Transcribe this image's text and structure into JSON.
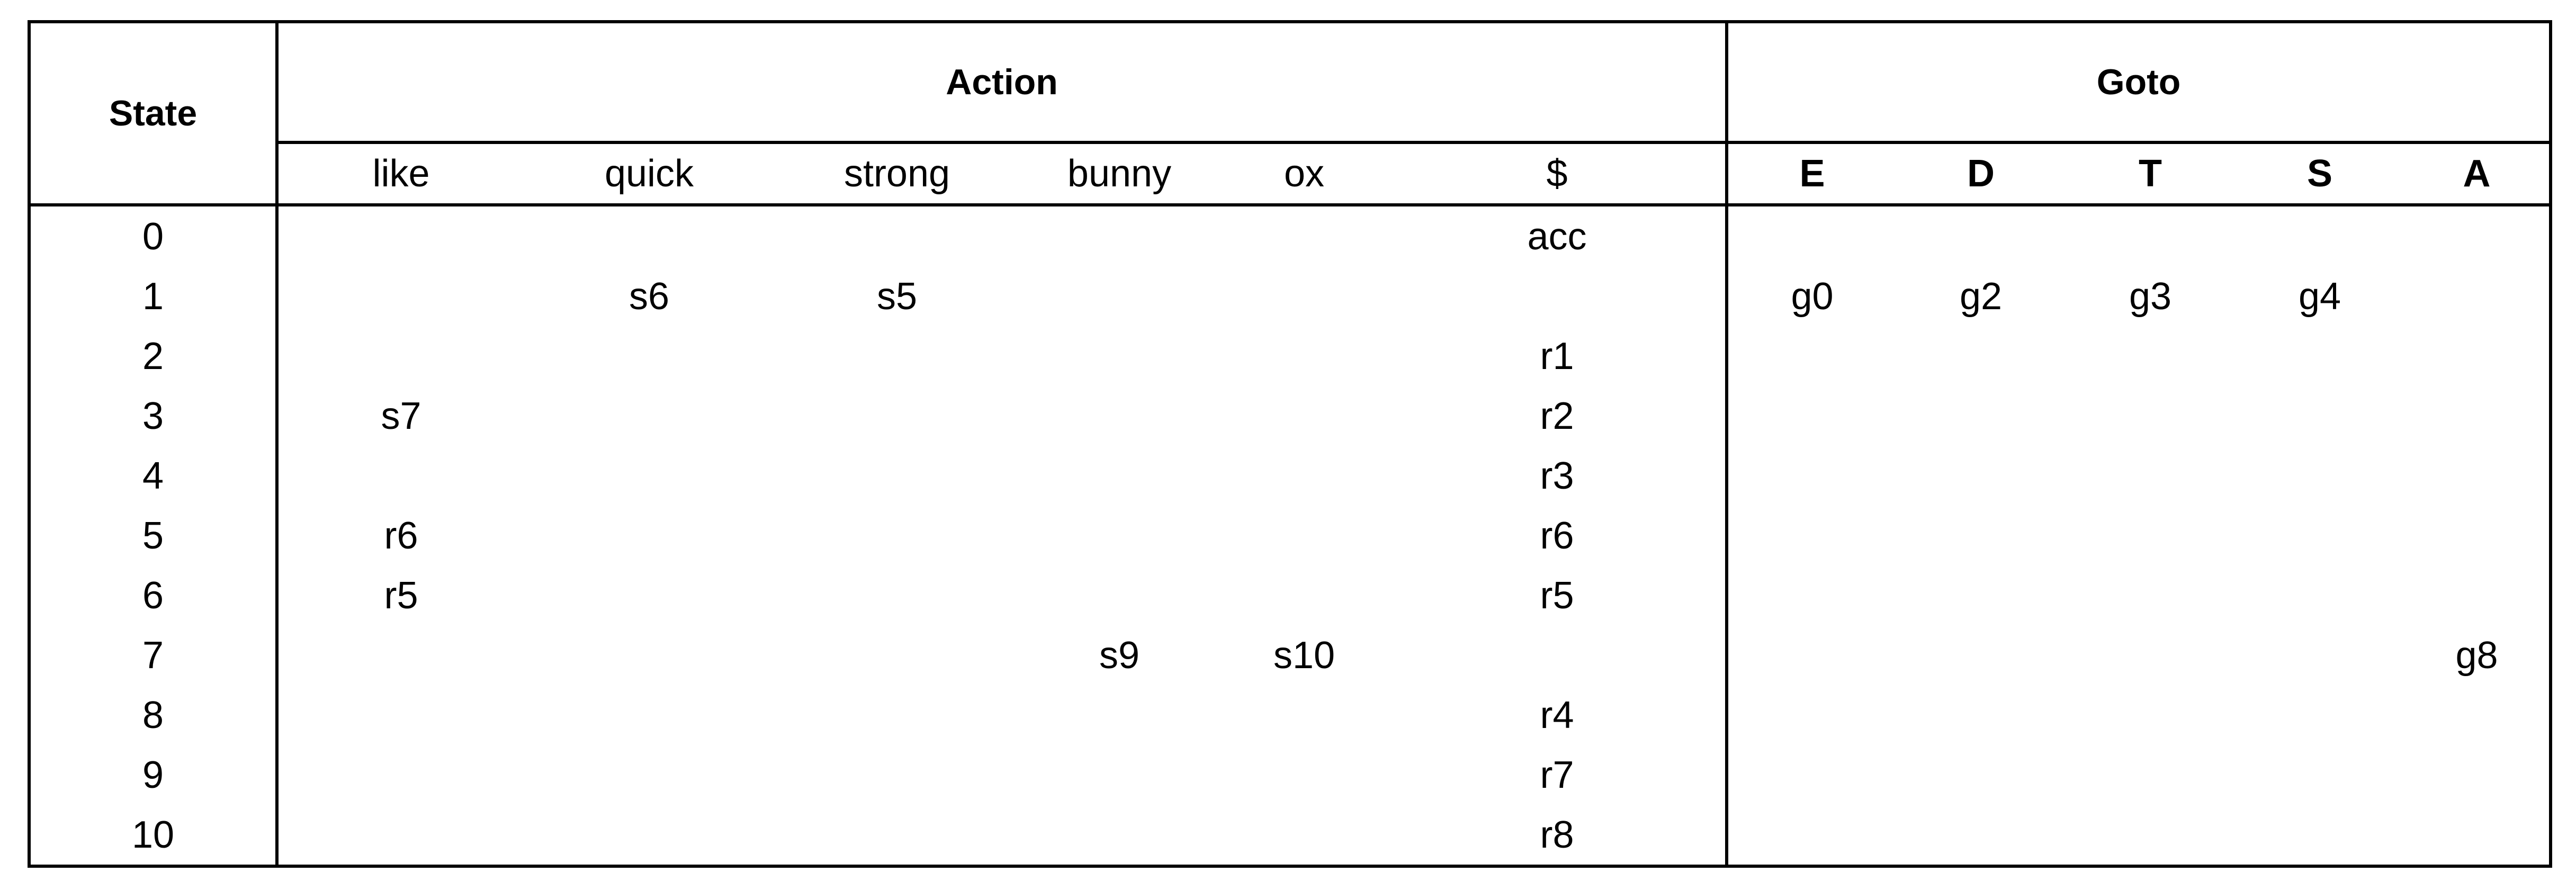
{
  "table": {
    "state_header": "State",
    "action_header": "Action",
    "goto_header": "Goto",
    "action_symbols": [
      "like",
      "quick",
      "strong",
      "bunny",
      "ox",
      "$"
    ],
    "goto_symbols": [
      "E",
      "D",
      "T",
      "S",
      "A"
    ],
    "rows": [
      {
        "state": "0",
        "action": [
          "",
          "",
          "",
          "",
          "",
          "acc"
        ],
        "goto": [
          "",
          "",
          "",
          "",
          ""
        ]
      },
      {
        "state": "1",
        "action": [
          "",
          "s6",
          "s5",
          "",
          "",
          ""
        ],
        "goto": [
          "g0",
          "g2",
          "g3",
          "g4",
          ""
        ]
      },
      {
        "state": "2",
        "action": [
          "",
          "",
          "",
          "",
          "",
          "r1"
        ],
        "goto": [
          "",
          "",
          "",
          "",
          ""
        ]
      },
      {
        "state": "3",
        "action": [
          "s7",
          "",
          "",
          "",
          "",
          "r2"
        ],
        "goto": [
          "",
          "",
          "",
          "",
          ""
        ]
      },
      {
        "state": "4",
        "action": [
          "",
          "",
          "",
          "",
          "",
          "r3"
        ],
        "goto": [
          "",
          "",
          "",
          "",
          ""
        ]
      },
      {
        "state": "5",
        "action": [
          "r6",
          "",
          "",
          "",
          "",
          "r6"
        ],
        "goto": [
          "",
          "",
          "",
          "",
          ""
        ]
      },
      {
        "state": "6",
        "action": [
          "r5",
          "",
          "",
          "",
          "",
          "r5"
        ],
        "goto": [
          "",
          "",
          "",
          "",
          ""
        ]
      },
      {
        "state": "7",
        "action": [
          "",
          "",
          "",
          "s9",
          "s10",
          ""
        ],
        "goto": [
          "",
          "",
          "",
          "",
          "g8"
        ]
      },
      {
        "state": "8",
        "action": [
          "",
          "",
          "",
          "",
          "",
          "r4"
        ],
        "goto": [
          "",
          "",
          "",
          "",
          ""
        ]
      },
      {
        "state": "9",
        "action": [
          "",
          "",
          "",
          "",
          "",
          "r7"
        ],
        "goto": [
          "",
          "",
          "",
          "",
          ""
        ]
      },
      {
        "state": "10",
        "action": [
          "",
          "",
          "",
          "",
          "",
          "r8"
        ],
        "goto": [
          "",
          "",
          "",
          "",
          ""
        ]
      }
    ]
  }
}
